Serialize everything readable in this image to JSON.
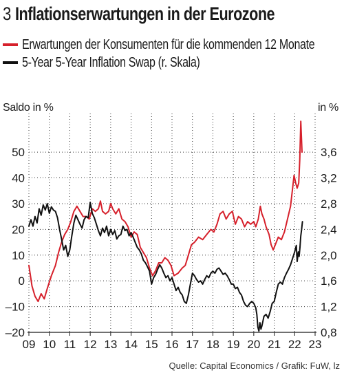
{
  "header": {
    "number": "3",
    "title": "Inflationserwartungen in der Eurozone"
  },
  "source": "Quelle: Capital Economics / Grafik: FuW, lz",
  "colors": {
    "red": "#d6202b",
    "black": "#111111",
    "grid": "#333333"
  },
  "chart_data": {
    "type": "line",
    "title": "Inflationserwartungen in der Eurozone",
    "left_axis_label": "Saldo in %",
    "right_axis_label": "in %",
    "xlim": [
      2009,
      2023
    ],
    "x_ticks": [
      2009,
      2010,
      2011,
      2012,
      2013,
      2014,
      2015,
      2016,
      2017,
      2018,
      2019,
      2020,
      2021,
      2022,
      2023
    ],
    "x_tick_labels": [
      "09",
      "10",
      "11",
      "12",
      "13",
      "14",
      "15",
      "16",
      "17",
      "18",
      "19",
      "20",
      "21",
      "22",
      "23"
    ],
    "ylim_left": [
      -20,
      65
    ],
    "y_ticks_left": [
      -20,
      -10,
      0,
      10,
      20,
      30,
      40,
      50
    ],
    "y_tick_labels_left": [
      "–20",
      "–10",
      "0",
      "10",
      "20",
      "30",
      "40",
      "50"
    ],
    "ylim_right": [
      0.8,
      4.2
    ],
    "y_ticks_right": [
      0.8,
      1.2,
      1.6,
      2.0,
      2.4,
      2.8,
      3.2,
      3.6
    ],
    "y_tick_labels_right": [
      "0,8",
      "1,2",
      "1,6",
      "2,0",
      "2,4",
      "2,8",
      "3,2",
      "3,6"
    ],
    "grid": "dotted",
    "legend_position": "top",
    "series": [
      {
        "name": "Erwartungen der Konsumenten für die kommenden 12 Monate",
        "axis": "left",
        "color": "#d6202b",
        "points": [
          [
            2009.0,
            6
          ],
          [
            2009.15,
            -2
          ],
          [
            2009.3,
            -6
          ],
          [
            2009.45,
            -8
          ],
          [
            2009.6,
            -5
          ],
          [
            2009.75,
            -7
          ],
          [
            2009.9,
            -3
          ],
          [
            2010.1,
            2
          ],
          [
            2010.3,
            6
          ],
          [
            2010.45,
            11
          ],
          [
            2010.6,
            15
          ],
          [
            2010.75,
            18
          ],
          [
            2010.9,
            20
          ],
          [
            2011.05,
            23
          ],
          [
            2011.2,
            27
          ],
          [
            2011.35,
            29
          ],
          [
            2011.5,
            27
          ],
          [
            2011.65,
            25
          ],
          [
            2011.8,
            25
          ],
          [
            2011.95,
            24
          ],
          [
            2012.1,
            28
          ],
          [
            2012.25,
            27
          ],
          [
            2012.4,
            28
          ],
          [
            2012.5,
            31
          ],
          [
            2012.6,
            27
          ],
          [
            2012.75,
            26
          ],
          [
            2012.9,
            27
          ],
          [
            2013.0,
            30
          ],
          [
            2013.1,
            28
          ],
          [
            2013.25,
            26
          ],
          [
            2013.4,
            28
          ],
          [
            2013.55,
            24
          ],
          [
            2013.7,
            23
          ],
          [
            2013.85,
            21
          ],
          [
            2014.0,
            17
          ],
          [
            2014.15,
            19
          ],
          [
            2014.3,
            18
          ],
          [
            2014.45,
            13
          ],
          [
            2014.6,
            11
          ],
          [
            2014.75,
            9
          ],
          [
            2014.9,
            5
          ],
          [
            2015.05,
            2
          ],
          [
            2015.2,
            4
          ],
          [
            2015.35,
            7
          ],
          [
            2015.5,
            7
          ],
          [
            2015.65,
            9
          ],
          [
            2015.8,
            8
          ],
          [
            2015.95,
            6
          ],
          [
            2016.1,
            2
          ],
          [
            2016.3,
            3
          ],
          [
            2016.5,
            5
          ],
          [
            2016.65,
            6
          ],
          [
            2016.8,
            10
          ],
          [
            2016.95,
            14
          ],
          [
            2017.1,
            15
          ],
          [
            2017.3,
            17
          ],
          [
            2017.5,
            16
          ],
          [
            2017.7,
            18
          ],
          [
            2017.9,
            20
          ],
          [
            2018.05,
            19
          ],
          [
            2018.2,
            22
          ],
          [
            2018.35,
            26
          ],
          [
            2018.5,
            27
          ],
          [
            2018.65,
            24
          ],
          [
            2018.8,
            26
          ],
          [
            2018.95,
            27
          ],
          [
            2019.1,
            22
          ],
          [
            2019.25,
            25
          ],
          [
            2019.4,
            24
          ],
          [
            2019.55,
            21
          ],
          [
            2019.7,
            23
          ],
          [
            2019.85,
            22
          ],
          [
            2020.0,
            23
          ],
          [
            2020.1,
            21
          ],
          [
            2020.22,
            24
          ],
          [
            2020.32,
            29
          ],
          [
            2020.4,
            26
          ],
          [
            2020.5,
            24
          ],
          [
            2020.6,
            21
          ],
          [
            2020.75,
            18
          ],
          [
            2020.85,
            14
          ],
          [
            2020.95,
            12
          ],
          [
            2021.05,
            14
          ],
          [
            2021.2,
            17
          ],
          [
            2021.35,
            16
          ],
          [
            2021.5,
            19
          ],
          [
            2021.65,
            24
          ],
          [
            2021.8,
            29
          ],
          [
            2021.9,
            36
          ],
          [
            2021.97,
            41
          ],
          [
            2022.05,
            38
          ],
          [
            2022.12,
            36
          ],
          [
            2022.2,
            38
          ],
          [
            2022.25,
            47
          ],
          [
            2022.3,
            62
          ],
          [
            2022.36,
            50
          ]
        ]
      },
      {
        "name": "5-Year 5-Year Inflation Swap (r. Skala)",
        "axis": "right",
        "color": "#111111",
        "points": [
          [
            2009.0,
            2.45
          ],
          [
            2009.1,
            2.55
          ],
          [
            2009.2,
            2.45
          ],
          [
            2009.3,
            2.6
          ],
          [
            2009.4,
            2.5
          ],
          [
            2009.5,
            2.72
          ],
          [
            2009.6,
            2.62
          ],
          [
            2009.7,
            2.78
          ],
          [
            2009.8,
            2.7
          ],
          [
            2009.9,
            2.8
          ],
          [
            2010.0,
            2.65
          ],
          [
            2010.1,
            2.75
          ],
          [
            2010.2,
            2.7
          ],
          [
            2010.3,
            2.68
          ],
          [
            2010.4,
            2.58
          ],
          [
            2010.5,
            2.4
          ],
          [
            2010.6,
            2.25
          ],
          [
            2010.7,
            2.08
          ],
          [
            2010.8,
            2.15
          ],
          [
            2010.9,
            1.98
          ],
          [
            2011.0,
            2.08
          ],
          [
            2011.1,
            2.3
          ],
          [
            2011.2,
            2.5
          ],
          [
            2011.3,
            2.62
          ],
          [
            2011.4,
            2.55
          ],
          [
            2011.5,
            2.48
          ],
          [
            2011.6,
            2.42
          ],
          [
            2011.7,
            2.55
          ],
          [
            2011.8,
            2.6
          ],
          [
            2011.9,
            2.58
          ],
          [
            2012.0,
            2.82
          ],
          [
            2012.1,
            2.65
          ],
          [
            2012.2,
            2.58
          ],
          [
            2012.3,
            2.48
          ],
          [
            2012.4,
            2.38
          ],
          [
            2012.5,
            2.3
          ],
          [
            2012.6,
            2.42
          ],
          [
            2012.7,
            2.35
          ],
          [
            2012.8,
            2.45
          ],
          [
            2012.9,
            2.3
          ],
          [
            2013.0,
            2.4
          ],
          [
            2013.1,
            2.32
          ],
          [
            2013.2,
            2.38
          ],
          [
            2013.3,
            2.25
          ],
          [
            2013.4,
            2.3
          ],
          [
            2013.5,
            2.32
          ],
          [
            2013.6,
            2.45
          ],
          [
            2013.7,
            2.38
          ],
          [
            2013.8,
            2.4
          ],
          [
            2013.9,
            2.3
          ],
          [
            2014.0,
            2.35
          ],
          [
            2014.1,
            2.28
          ],
          [
            2014.2,
            2.2
          ],
          [
            2014.3,
            2.12
          ],
          [
            2014.4,
            2.08
          ],
          [
            2014.5,
            2.02
          ],
          [
            2014.6,
            1.92
          ],
          [
            2014.7,
            1.88
          ],
          [
            2014.8,
            1.82
          ],
          [
            2014.9,
            1.75
          ],
          [
            2015.0,
            1.55
          ],
          [
            2015.1,
            1.65
          ],
          [
            2015.2,
            1.7
          ],
          [
            2015.3,
            1.78
          ],
          [
            2015.4,
            1.85
          ],
          [
            2015.5,
            1.8
          ],
          [
            2015.6,
            1.72
          ],
          [
            2015.7,
            1.65
          ],
          [
            2015.8,
            1.68
          ],
          [
            2015.9,
            1.6
          ],
          [
            2016.0,
            1.65
          ],
          [
            2016.1,
            1.55
          ],
          [
            2016.2,
            1.45
          ],
          [
            2016.3,
            1.5
          ],
          [
            2016.4,
            1.42
          ],
          [
            2016.5,
            1.38
          ],
          [
            2016.6,
            1.28
          ],
          [
            2016.7,
            1.25
          ],
          [
            2016.8,
            1.38
          ],
          [
            2016.9,
            1.55
          ],
          [
            2017.0,
            1.72
          ],
          [
            2017.1,
            1.68
          ],
          [
            2017.2,
            1.62
          ],
          [
            2017.3,
            1.58
          ],
          [
            2017.4,
            1.6
          ],
          [
            2017.5,
            1.55
          ],
          [
            2017.6,
            1.62
          ],
          [
            2017.7,
            1.68
          ],
          [
            2017.8,
            1.65
          ],
          [
            2017.9,
            1.72
          ],
          [
            2018.0,
            1.75
          ],
          [
            2018.1,
            1.72
          ],
          [
            2018.2,
            1.78
          ],
          [
            2018.3,
            1.8
          ],
          [
            2018.4,
            1.75
          ],
          [
            2018.5,
            1.7
          ],
          [
            2018.6,
            1.72
          ],
          [
            2018.7,
            1.68
          ],
          [
            2018.8,
            1.62
          ],
          [
            2018.9,
            1.55
          ],
          [
            2019.0,
            1.55
          ],
          [
            2019.1,
            1.48
          ],
          [
            2019.2,
            1.5
          ],
          [
            2019.3,
            1.42
          ],
          [
            2019.4,
            1.38
          ],
          [
            2019.5,
            1.28
          ],
          [
            2019.6,
            1.22
          ],
          [
            2019.7,
            1.2
          ],
          [
            2019.8,
            1.25
          ],
          [
            2019.9,
            1.28
          ],
          [
            2020.0,
            1.25
          ],
          [
            2020.1,
            1.18
          ],
          [
            2020.15,
            1.08
          ],
          [
            2020.2,
            0.88
          ],
          [
            2020.25,
            0.82
          ],
          [
            2020.3,
            0.95
          ],
          [
            2020.35,
            0.85
          ],
          [
            2020.4,
            0.9
          ],
          [
            2020.5,
            1.05
          ],
          [
            2020.6,
            1.08
          ],
          [
            2020.7,
            1.02
          ],
          [
            2020.8,
            1.12
          ],
          [
            2020.9,
            1.25
          ],
          [
            2021.0,
            1.28
          ],
          [
            2021.1,
            1.42
          ],
          [
            2021.2,
            1.55
          ],
          [
            2021.3,
            1.58
          ],
          [
            2021.4,
            1.55
          ],
          [
            2021.5,
            1.65
          ],
          [
            2021.6,
            1.72
          ],
          [
            2021.7,
            1.78
          ],
          [
            2021.8,
            1.85
          ],
          [
            2021.9,
            1.95
          ],
          [
            2022.0,
            2.05
          ],
          [
            2022.08,
            2.15
          ],
          [
            2022.12,
            1.9
          ],
          [
            2022.18,
            2.05
          ],
          [
            2022.22,
            1.98
          ],
          [
            2022.26,
            2.12
          ],
          [
            2022.3,
            2.3
          ],
          [
            2022.34,
            2.4
          ],
          [
            2022.38,
            2.52
          ]
        ]
      }
    ]
  }
}
